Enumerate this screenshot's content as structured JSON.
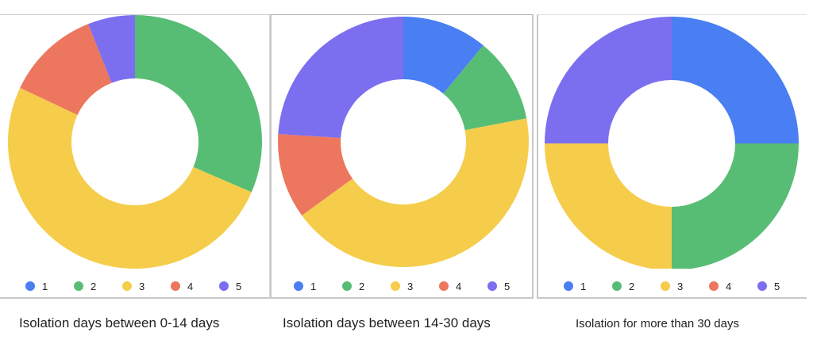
{
  "colors": {
    "1": "#4a7ef3",
    "2": "#58bd74",
    "3": "#f5cd4b",
    "4": "#ed765e",
    "5": "#7b6ff0"
  },
  "legend_labels": [
    "1",
    "2",
    "3",
    "4",
    "5"
  ],
  "chart_data": [
    {
      "type": "pie",
      "donut": true,
      "title": "Isolation days between 0-14 days",
      "labels": [
        "1",
        "2",
        "3",
        "4",
        "5"
      ],
      "values": [
        0,
        31.5,
        50.5,
        12,
        6
      ],
      "legend_position": "bottom"
    },
    {
      "type": "pie",
      "donut": true,
      "title": "Isolation days between 14-30 days",
      "labels": [
        "1",
        "2",
        "3",
        "4",
        "5"
      ],
      "values": [
        11,
        11,
        43,
        11,
        24
      ],
      "legend_position": "bottom"
    },
    {
      "type": "pie",
      "donut": true,
      "title": "Isolation for more than 30 days",
      "labels": [
        "1",
        "2",
        "3",
        "4",
        "5"
      ],
      "values": [
        25,
        25,
        25,
        0,
        25
      ],
      "legend_position": "bottom"
    }
  ]
}
